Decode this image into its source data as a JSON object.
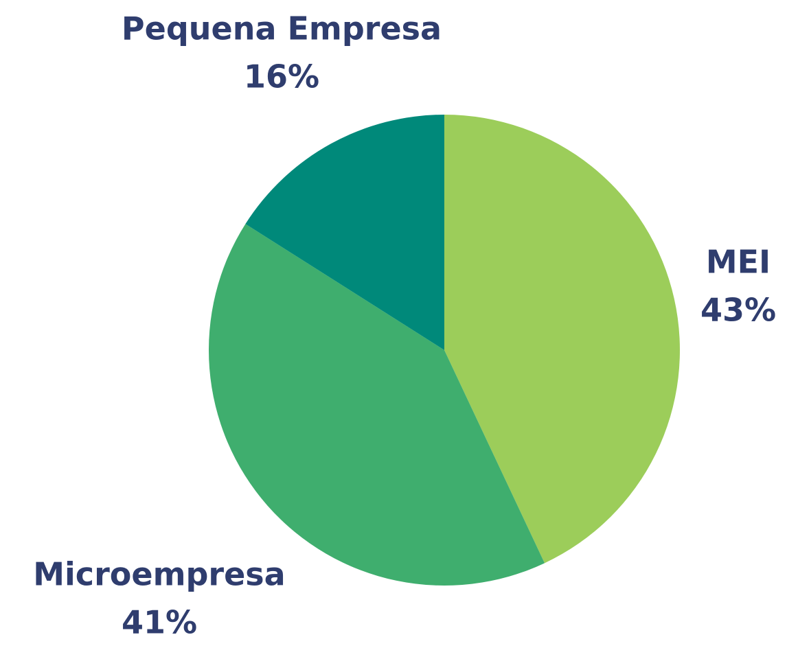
{
  "chart_data": {
    "type": "pie",
    "categories": [
      "MEI",
      "Microempresa",
      "Pequena Empresa"
    ],
    "values": [
      43,
      41,
      16
    ],
    "value_labels": [
      "43%",
      "41%",
      "16%"
    ],
    "colors": [
      "#9ccd5a",
      "#3fae6e",
      "#00897a"
    ]
  }
}
